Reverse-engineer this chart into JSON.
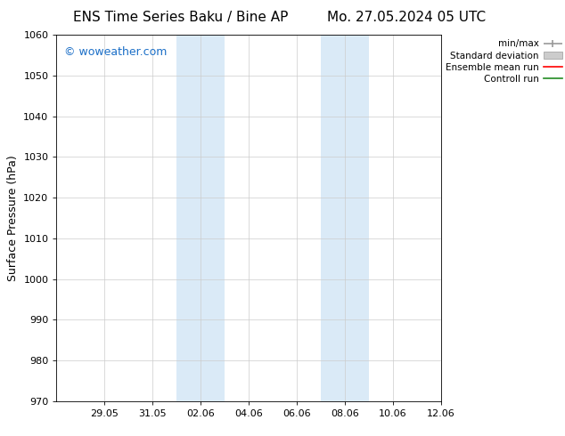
{
  "title_left": "ENS Time Series Baku / Bine AP",
  "title_right": "Mo. 27.05.2024 05 UTC",
  "ylabel": "Surface Pressure (hPa)",
  "ylim": [
    970,
    1060
  ],
  "yticks": [
    970,
    980,
    990,
    1000,
    1010,
    1020,
    1030,
    1040,
    1050,
    1060
  ],
  "xlim": [
    0,
    16
  ],
  "xtick_labels": [
    "29.05",
    "31.05",
    "02.06",
    "04.06",
    "06.06",
    "08.06",
    "10.06",
    "12.06"
  ],
  "xtick_positions": [
    2,
    4,
    6,
    8,
    10,
    12,
    14,
    16
  ],
  "shaded_bands": [
    {
      "x_start": 5.0,
      "x_end": 7.0
    },
    {
      "x_start": 11.0,
      "x_end": 13.0
    }
  ],
  "shaded_color": "#daeaf7",
  "background_color": "#ffffff",
  "watermark_text": "© woweather.com",
  "watermark_color": "#1a6ec7",
  "watermark_fontsize": 9,
  "title_fontsize": 11,
  "axis_fontsize": 9,
  "tick_fontsize": 8,
  "legend_labels": [
    "min/max",
    "Standard deviation",
    "Ensemble mean run",
    "Controll run"
  ],
  "legend_colors": [
    "#aaaaaa",
    "#cccccc",
    "#ff0000",
    "#228B22"
  ],
  "minmax_color": "#999999",
  "std_color": "#cccccc",
  "ensemble_color": "#ff0000",
  "control_color": "#228B22"
}
